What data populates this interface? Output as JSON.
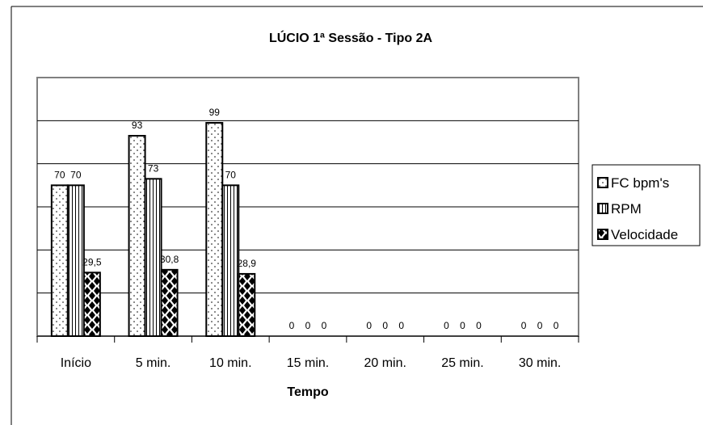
{
  "chart_data": {
    "type": "bar",
    "title": "LÚCIO 1ª Sessão - Tipo 2A",
    "xlabel": "Tempo",
    "ylabel": "",
    "categories": [
      "Início",
      "5 min.",
      "10 min.",
      "15 min.",
      "20 min.",
      "25 min.",
      "30 min."
    ],
    "ylim": [
      0,
      120
    ],
    "grid": true,
    "legend_position": "right",
    "series": [
      {
        "name": "FC bpm's",
        "values": [
          70,
          93,
          99,
          0,
          0,
          0,
          0
        ],
        "labels": [
          "70",
          "93",
          "99",
          "0",
          "0",
          "0",
          "0"
        ],
        "pattern": "dots"
      },
      {
        "name": "RPM",
        "values": [
          70,
          73,
          70,
          0,
          0,
          0,
          0
        ],
        "labels": [
          "70",
          "73",
          "70",
          "0",
          "0",
          "0",
          "0"
        ],
        "pattern": "vertical-lines"
      },
      {
        "name": "Velocidade",
        "values": [
          29.5,
          30.8,
          28.9,
          0,
          0,
          0,
          0
        ],
        "labels": [
          "29,5",
          "30,8",
          "28,9",
          "0",
          "0",
          "0",
          "0"
        ],
        "pattern": "diamonds"
      }
    ]
  },
  "colors": {
    "plot_background": "#ffffff",
    "bars": "#000000",
    "frame": "#808080"
  }
}
